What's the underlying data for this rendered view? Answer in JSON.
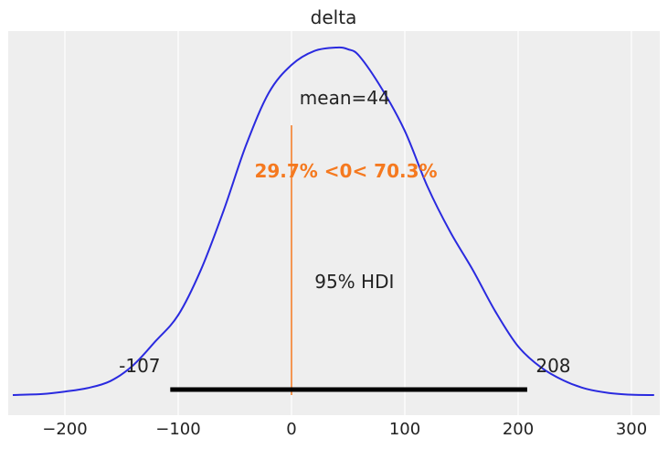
{
  "chart_data": {
    "type": "line",
    "title": "delta",
    "xlabel": "",
    "ylabel": "",
    "xlim": [
      -250,
      325
    ],
    "x_ticks": [
      -200,
      -100,
      0,
      100,
      200,
      300
    ],
    "x_tick_labels": [
      "−200",
      "−100",
      "0",
      "100",
      "200",
      "300"
    ],
    "grid": true,
    "series": [
      {
        "color": "#2a2adf",
        "x": [
          -246,
          -220,
          -200,
          -180,
          -160,
          -140,
          -120,
          -100,
          -80,
          -60,
          -40,
          -20,
          0,
          20,
          40,
          50,
          60,
          80,
          100,
          120,
          140,
          160,
          180,
          200,
          220,
          240,
          260,
          280,
          300,
          320
        ],
        "y": [
          0.0,
          0.003,
          0.01,
          0.02,
          0.04,
          0.085,
          0.155,
          0.23,
          0.36,
          0.53,
          0.72,
          0.87,
          0.95,
          0.99,
          1.0,
          0.995,
          0.975,
          0.88,
          0.76,
          0.6,
          0.47,
          0.36,
          0.24,
          0.14,
          0.08,
          0.042,
          0.018,
          0.006,
          0.001,
          0.0
        ]
      }
    ],
    "mean": 44,
    "mean_label": "mean=44",
    "ref_val": 0,
    "ref_label": "29.7% <0< 70.3%",
    "ref_color": "#f5791f",
    "hdi_low": -107,
    "hdi_high": 208,
    "hdi_low_label": "-107",
    "hdi_high_label": "208",
    "hdi_label": "95% HDI"
  }
}
